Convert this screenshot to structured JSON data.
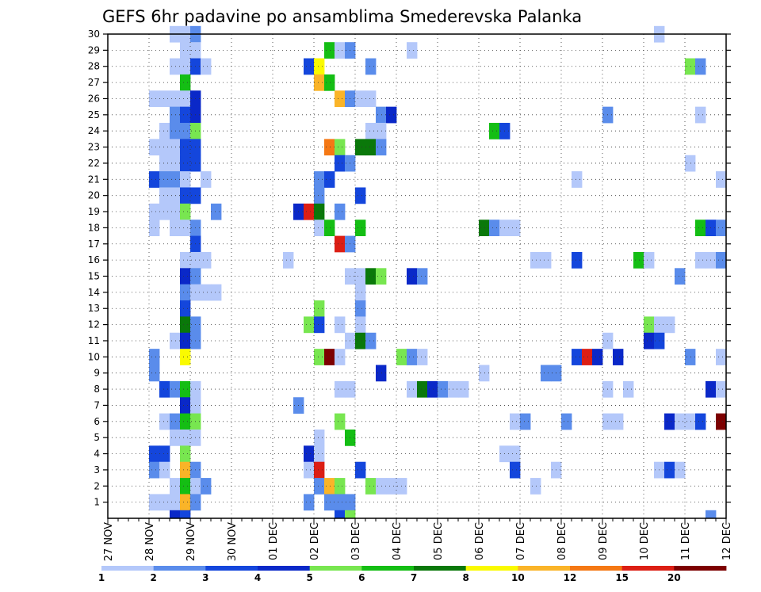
{
  "chart_data": {
    "type": "heatmap",
    "title": "GEFS 6hr padavine po ansamblima Smederevska Palanka",
    "xlabel": "",
    "ylabel": "",
    "x_ticks": [
      "27 NOV",
      "28 NOV",
      "29 NOV",
      "30 NOV",
      "01 DEC",
      "02 DEC",
      "03 DEC",
      "04 DEC",
      "05 DEC",
      "06 DEC",
      "07 DEC",
      "08 DEC",
      "09 DEC",
      "10 DEC",
      "11 DEC",
      "12 DEC"
    ],
    "y_ticks": [
      "1",
      "2",
      "3",
      "4",
      "5",
      "6",
      "7",
      "8",
      "9",
      "10",
      "11",
      "12",
      "13",
      "14",
      "15",
      "16",
      "17",
      "18",
      "19",
      "20",
      "21",
      "22",
      "23",
      "24",
      "25",
      "26",
      "27",
      "28",
      "29",
      "30"
    ],
    "x_range_steps": [
      0,
      60
    ],
    "y_range": [
      0,
      30
    ],
    "time_step_hours": 6,
    "grid": "dotted",
    "legend_position": "bottom",
    "levels": [
      "1",
      "2",
      "3",
      "4",
      "5",
      "6",
      "7",
      "8",
      "10",
      "12",
      "15",
      "20"
    ],
    "level_colors": [
      "#b4c8fa",
      "#5a8ceb",
      "#1446dc",
      "#0a28c8",
      "#78e650",
      "#14be14",
      "#0a780a",
      "#fafa00",
      "#fab428",
      "#f57814",
      "#dc1e14",
      "#7d0000"
    ],
    "cells": [
      [
        30,
        6,
        1
      ],
      [
        30,
        7,
        1
      ],
      [
        30,
        8,
        2
      ],
      [
        30,
        53,
        1
      ],
      [
        29,
        7,
        1
      ],
      [
        29,
        8,
        1
      ],
      [
        29,
        21,
        6
      ],
      [
        29,
        22,
        1
      ],
      [
        29,
        23,
        2
      ],
      [
        29,
        29,
        1
      ],
      [
        28,
        6,
        1
      ],
      [
        28,
        7,
        1
      ],
      [
        28,
        8,
        3
      ],
      [
        28,
        9,
        1
      ],
      [
        28,
        19,
        3
      ],
      [
        28,
        20,
        8
      ],
      [
        28,
        25,
        2
      ],
      [
        28,
        56,
        5
      ],
      [
        28,
        57,
        2
      ],
      [
        27,
        7,
        6
      ],
      [
        27,
        20,
        9
      ],
      [
        27,
        21,
        6
      ],
      [
        26,
        4,
        1
      ],
      [
        26,
        5,
        1
      ],
      [
        26,
        6,
        1
      ],
      [
        26,
        7,
        1
      ],
      [
        26,
        8,
        4
      ],
      [
        26,
        22,
        9
      ],
      [
        26,
        23,
        2
      ],
      [
        26,
        24,
        1
      ],
      [
        26,
        25,
        1
      ],
      [
        25,
        6,
        2
      ],
      [
        25,
        7,
        3
      ],
      [
        25,
        8,
        4
      ],
      [
        25,
        26,
        2
      ],
      [
        25,
        27,
        4
      ],
      [
        25,
        48,
        2
      ],
      [
        25,
        57,
        1
      ],
      [
        24,
        5,
        1
      ],
      [
        24,
        6,
        2
      ],
      [
        24,
        7,
        2
      ],
      [
        24,
        8,
        5
      ],
      [
        24,
        25,
        1
      ],
      [
        24,
        26,
        1
      ],
      [
        24,
        37,
        6
      ],
      [
        24,
        38,
        3
      ],
      [
        23,
        4,
        1
      ],
      [
        23,
        5,
        1
      ],
      [
        23,
        6,
        1
      ],
      [
        23,
        7,
        3
      ],
      [
        23,
        8,
        3
      ],
      [
        23,
        21,
        10
      ],
      [
        23,
        22,
        5
      ],
      [
        23,
        24,
        7
      ],
      [
        23,
        25,
        7
      ],
      [
        23,
        26,
        2
      ],
      [
        22,
        5,
        1
      ],
      [
        22,
        6,
        1
      ],
      [
        22,
        7,
        3
      ],
      [
        22,
        8,
        3
      ],
      [
        22,
        22,
        3
      ],
      [
        22,
        23,
        2
      ],
      [
        22,
        56,
        1
      ],
      [
        21,
        4,
        3
      ],
      [
        21,
        5,
        2
      ],
      [
        21,
        6,
        2
      ],
      [
        21,
        7,
        1
      ],
      [
        21,
        9,
        1
      ],
      [
        21,
        20,
        2
      ],
      [
        21,
        21,
        3
      ],
      [
        21,
        45,
        1
      ],
      [
        21,
        59,
        1
      ],
      [
        20,
        5,
        1
      ],
      [
        20,
        6,
        1
      ],
      [
        20,
        7,
        3
      ],
      [
        20,
        8,
        3
      ],
      [
        20,
        20,
        2
      ],
      [
        20,
        24,
        3
      ],
      [
        19,
        4,
        1
      ],
      [
        19,
        5,
        1
      ],
      [
        19,
        6,
        1
      ],
      [
        19,
        7,
        5
      ],
      [
        19,
        10,
        2
      ],
      [
        19,
        18,
        4
      ],
      [
        19,
        19,
        11
      ],
      [
        19,
        20,
        7
      ],
      [
        19,
        22,
        2
      ],
      [
        18,
        4,
        1
      ],
      [
        18,
        6,
        1
      ],
      [
        18,
        7,
        1
      ],
      [
        18,
        8,
        2
      ],
      [
        18,
        20,
        1
      ],
      [
        18,
        21,
        6
      ],
      [
        18,
        24,
        6
      ],
      [
        18,
        36,
        7
      ],
      [
        18,
        37,
        2
      ],
      [
        18,
        38,
        1
      ],
      [
        18,
        39,
        1
      ],
      [
        18,
        57,
        6
      ],
      [
        18,
        58,
        3
      ],
      [
        18,
        59,
        2
      ],
      [
        17,
        8,
        3
      ],
      [
        17,
        22,
        11
      ],
      [
        17,
        23,
        2
      ],
      [
        16,
        7,
        1
      ],
      [
        16,
        8,
        1
      ],
      [
        16,
        9,
        1
      ],
      [
        16,
        17,
        1
      ],
      [
        16,
        41,
        1
      ],
      [
        16,
        42,
        1
      ],
      [
        16,
        45,
        3
      ],
      [
        16,
        51,
        6
      ],
      [
        16,
        52,
        1
      ],
      [
        16,
        57,
        1
      ],
      [
        16,
        58,
        1
      ],
      [
        16,
        59,
        2
      ],
      [
        15,
        7,
        4
      ],
      [
        15,
        8,
        2
      ],
      [
        15,
        23,
        1
      ],
      [
        15,
        24,
        1
      ],
      [
        15,
        25,
        7
      ],
      [
        15,
        26,
        5
      ],
      [
        15,
        29,
        4
      ],
      [
        15,
        30,
        2
      ],
      [
        15,
        55,
        2
      ],
      [
        14,
        7,
        2
      ],
      [
        14,
        8,
        1
      ],
      [
        14,
        9,
        1
      ],
      [
        14,
        10,
        1
      ],
      [
        14,
        24,
        1
      ],
      [
        13,
        7,
        3
      ],
      [
        13,
        20,
        5
      ],
      [
        13,
        24,
        2
      ],
      [
        12,
        7,
        7
      ],
      [
        12,
        8,
        2
      ],
      [
        12,
        19,
        5
      ],
      [
        12,
        20,
        3
      ],
      [
        12,
        22,
        1
      ],
      [
        12,
        24,
        1
      ],
      [
        12,
        52,
        5
      ],
      [
        12,
        53,
        1
      ],
      [
        12,
        54,
        1
      ],
      [
        11,
        6,
        1
      ],
      [
        11,
        7,
        4
      ],
      [
        11,
        8,
        2
      ],
      [
        11,
        23,
        1
      ],
      [
        11,
        24,
        7
      ],
      [
        11,
        25,
        2
      ],
      [
        11,
        48,
        1
      ],
      [
        11,
        52,
        4
      ],
      [
        11,
        53,
        3
      ],
      [
        10,
        4,
        2
      ],
      [
        10,
        7,
        8
      ],
      [
        10,
        20,
        5
      ],
      [
        10,
        21,
        12
      ],
      [
        10,
        22,
        1
      ],
      [
        10,
        28,
        5
      ],
      [
        10,
        29,
        2
      ],
      [
        10,
        30,
        1
      ],
      [
        10,
        45,
        3
      ],
      [
        10,
        46,
        11
      ],
      [
        10,
        47,
        4
      ],
      [
        10,
        49,
        4
      ],
      [
        10,
        56,
        2
      ],
      [
        10,
        59,
        1
      ],
      [
        9,
        4,
        2
      ],
      [
        9,
        26,
        4
      ],
      [
        9,
        36,
        1
      ],
      [
        9,
        42,
        2
      ],
      [
        9,
        43,
        2
      ],
      [
        8,
        5,
        3
      ],
      [
        8,
        6,
        2
      ],
      [
        8,
        7,
        6
      ],
      [
        8,
        8,
        1
      ],
      [
        8,
        22,
        1
      ],
      [
        8,
        23,
        1
      ],
      [
        8,
        29,
        1
      ],
      [
        8,
        30,
        7
      ],
      [
        8,
        31,
        4
      ],
      [
        8,
        32,
        2
      ],
      [
        8,
        33,
        1
      ],
      [
        8,
        34,
        1
      ],
      [
        8,
        48,
        1
      ],
      [
        8,
        50,
        1
      ],
      [
        8,
        58,
        4
      ],
      [
        8,
        59,
        1
      ],
      [
        7,
        7,
        4
      ],
      [
        7,
        8,
        1
      ],
      [
        7,
        18,
        2
      ],
      [
        6,
        5,
        1
      ],
      [
        6,
        6,
        2
      ],
      [
        6,
        7,
        6
      ],
      [
        6,
        8,
        5
      ],
      [
        6,
        22,
        5
      ],
      [
        6,
        39,
        1
      ],
      [
        6,
        40,
        2
      ],
      [
        6,
        44,
        2
      ],
      [
        6,
        48,
        1
      ],
      [
        6,
        49,
        1
      ],
      [
        6,
        54,
        4
      ],
      [
        6,
        55,
        1
      ],
      [
        6,
        56,
        1
      ],
      [
        6,
        57,
        3
      ],
      [
        6,
        59,
        12
      ],
      [
        5,
        6,
        1
      ],
      [
        5,
        7,
        1
      ],
      [
        5,
        8,
        1
      ],
      [
        5,
        20,
        1
      ],
      [
        5,
        23,
        6
      ],
      [
        4,
        4,
        3
      ],
      [
        4,
        5,
        3
      ],
      [
        4,
        7,
        5
      ],
      [
        4,
        19,
        4
      ],
      [
        4,
        20,
        1
      ],
      [
        4,
        38,
        1
      ],
      [
        4,
        39,
        1
      ],
      [
        3,
        4,
        2
      ],
      [
        3,
        5,
        1
      ],
      [
        3,
        7,
        9
      ],
      [
        3,
        8,
        2
      ],
      [
        3,
        19,
        1
      ],
      [
        3,
        20,
        11
      ],
      [
        3,
        24,
        3
      ],
      [
        3,
        39,
        3
      ],
      [
        3,
        43,
        1
      ],
      [
        3,
        53,
        1
      ],
      [
        3,
        54,
        3
      ],
      [
        3,
        55,
        1
      ],
      [
        2,
        6,
        1
      ],
      [
        2,
        7,
        6
      ],
      [
        2,
        8,
        1
      ],
      [
        2,
        9,
        2
      ],
      [
        2,
        20,
        2
      ],
      [
        2,
        21,
        9
      ],
      [
        2,
        22,
        5
      ],
      [
        2,
        25,
        5
      ],
      [
        2,
        26,
        1
      ],
      [
        2,
        27,
        1
      ],
      [
        2,
        28,
        1
      ],
      [
        2,
        41,
        1
      ],
      [
        1,
        4,
        1
      ],
      [
        1,
        5,
        1
      ],
      [
        1,
        6,
        1
      ],
      [
        1,
        7,
        9
      ],
      [
        1,
        8,
        2
      ],
      [
        1,
        19,
        2
      ],
      [
        1,
        21,
        2
      ],
      [
        1,
        22,
        2
      ],
      [
        1,
        23,
        2
      ]
    ],
    "cells_below_axis": [
      [
        6,
        4
      ],
      [
        7,
        3
      ],
      [
        22,
        3
      ],
      [
        23,
        5
      ],
      [
        58,
        2
      ]
    ]
  }
}
